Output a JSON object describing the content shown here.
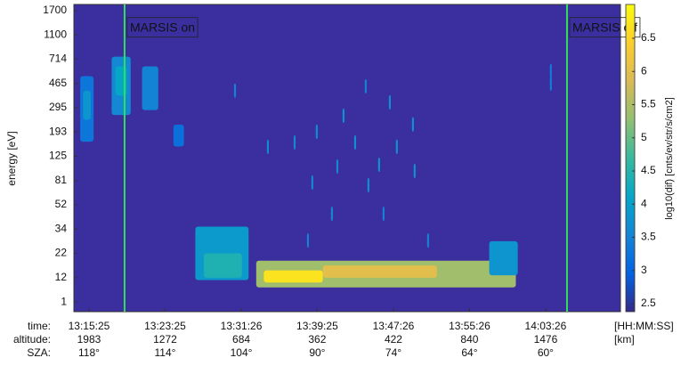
{
  "chart_data": {
    "type": "spectrogram",
    "y_label": "energy [eV]",
    "colorbar_label": "log10(dif) [cnts/ev/str/s/cm2]",
    "xlim": [
      13.83,
      71.3
    ],
    "ylim": [
      -0.4,
      12.25
    ],
    "clim": [
      2.38,
      7.01
    ],
    "background_color": "#3b2f9f",
    "colormap": [
      "#352a87",
      "#0363e1",
      "#1485d4",
      "#06a7c6",
      "#38b99e",
      "#92bf73",
      "#d9ba56",
      "#fcce2e",
      "#f9fb0e"
    ],
    "yticks": [
      {
        "value": 0,
        "label": "1"
      },
      {
        "value": 1,
        "label": "12"
      },
      {
        "value": 2,
        "label": "22"
      },
      {
        "value": 3,
        "label": "34"
      },
      {
        "value": 4,
        "label": "52"
      },
      {
        "value": 5,
        "label": "81"
      },
      {
        "value": 6,
        "label": "125"
      },
      {
        "value": 7,
        "label": "193"
      },
      {
        "value": 8,
        "label": "295"
      },
      {
        "value": 9,
        "label": "465"
      },
      {
        "value": 10,
        "label": "714"
      },
      {
        "value": 11,
        "label": "1100"
      },
      {
        "value": 12,
        "label": "1700"
      }
    ],
    "cticks": [
      2.5,
      3,
      3.5,
      4,
      4.5,
      5,
      5.5,
      6,
      6.5
    ],
    "events": [
      {
        "label": "MARSIS on",
        "x": 19.16,
        "color": "#2fe05a"
      },
      {
        "label": "MARSIS off",
        "x": 65.68,
        "color": "#2fe05a"
      }
    ],
    "rows": [
      {
        "name": "time:",
        "unit": "[HH:MM:SS]",
        "labels": [
          "13:15:25",
          "13:23:25",
          "13:31:26",
          "13:39:25",
          "13:47:26",
          "13:55:26",
          "14:03:26"
        ]
      },
      {
        "name": "altitude:",
        "unit": "[km]",
        "labels": [
          "1983",
          "1272",
          "684",
          "362",
          "422",
          "840",
          "1476"
        ]
      },
      {
        "name": "SZA:",
        "labels": [
          "118°",
          "114°",
          "104°",
          "90°",
          "74°",
          "64°",
          "60°"
        ]
      }
    ],
    "xticks": [
      15.42,
      23.42,
      31.43,
      39.42,
      47.43,
      55.43,
      63.43
    ],
    "cells": [
      {
        "t": [
          14.5,
          15.9
        ],
        "e": [
          6.6,
          9.3
        ],
        "value": 3.3
      },
      {
        "t": [
          14.8,
          15.6
        ],
        "e": [
          7.5,
          8.7
        ],
        "value": 3.8
      },
      {
        "t": [
          17.8,
          19.8
        ],
        "e": [
          7.7,
          10.1
        ],
        "value": 3.6
      },
      {
        "t": [
          18.2,
          19.4
        ],
        "e": [
          8.5,
          9.7
        ],
        "value": 4.1
      },
      {
        "t": [
          21.0,
          22.7
        ],
        "e": [
          7.9,
          9.7
        ],
        "value": 3.5
      },
      {
        "t": [
          24.3,
          25.4
        ],
        "e": [
          6.4,
          7.3
        ],
        "value": 3.2
      },
      {
        "t": [
          26.6,
          32.2
        ],
        "e": [
          0.9,
          3.1
        ],
        "value": 3.9
      },
      {
        "t": [
          27.5,
          31.5
        ],
        "e": [
          1.0,
          2.0
        ],
        "value": 4.4
      },
      {
        "t": [
          33.0,
          60.3
        ],
        "e": [
          0.6,
          1.7
        ],
        "value": 5.4
      },
      {
        "t": [
          33.8,
          40.0
        ],
        "e": [
          0.8,
          1.3
        ],
        "value": 6.7
      },
      {
        "t": [
          40.0,
          52.0
        ],
        "e": [
          1.0,
          1.5
        ],
        "value": 6.0
      },
      {
        "t": [
          57.5,
          60.5
        ],
        "e": [
          1.1,
          2.5
        ],
        "value": 3.8
      },
      {
        "t": [
          30.67,
          30.87
        ],
        "e": [
          8.4,
          9.0
        ],
        "value": 3.5
      },
      {
        "t": [
          44.42,
          44.62
        ],
        "e": [
          8.58,
          9.18
        ],
        "value": 3.5
      },
      {
        "t": [
          42.08,
          42.28
        ],
        "e": [
          7.37,
          7.97
        ],
        "value": 3.8
      },
      {
        "t": [
          46.95,
          47.15
        ],
        "e": [
          7.92,
          8.52
        ],
        "value": 3.7
      },
      {
        "t": [
          49.38,
          49.58
        ],
        "e": [
          7.01,
          7.61
        ],
        "value": 3.8
      },
      {
        "t": [
          39.27,
          39.47
        ],
        "e": [
          6.71,
          7.31
        ],
        "value": 3.7
      },
      {
        "t": [
          36.94,
          37.14
        ],
        "e": [
          6.27,
          6.87
        ],
        "value": 3.6
      },
      {
        "t": [
          47.69,
          47.89
        ],
        "e": [
          6.09,
          6.69
        ],
        "value": 3.8
      },
      {
        "t": [
          43.3,
          43.5
        ],
        "e": [
          6.27,
          6.87
        ],
        "value": 3.7
      },
      {
        "t": [
          34.13,
          34.33
        ],
        "e": [
          6.09,
          6.69
        ],
        "value": 3.6
      },
      {
        "t": [
          45.82,
          46.02
        ],
        "e": [
          5.35,
          5.95
        ],
        "value": 3.8
      },
      {
        "t": [
          41.43,
          41.63
        ],
        "e": [
          5.28,
          5.88
        ],
        "value": 3.6
      },
      {
        "t": [
          49.56,
          49.76
        ],
        "e": [
          5.09,
          5.69
        ],
        "value": 3.8
      },
      {
        "t": [
          38.8,
          39.0
        ],
        "e": [
          4.62,
          5.22
        ],
        "value": 3.6
      },
      {
        "t": [
          44.7,
          44.9
        ],
        "e": [
          4.51,
          5.11
        ],
        "value": 3.7
      },
      {
        "t": [
          40.86,
          41.06
        ],
        "e": [
          3.33,
          3.93
        ],
        "value": 3.6
      },
      {
        "t": [
          38.34,
          38.54
        ],
        "e": [
          2.23,
          2.83
        ],
        "value": 3.5
      },
      {
        "t": [
          50.97,
          51.17
        ],
        "e": [
          2.23,
          2.83
        ],
        "value": 3.5
      },
      {
        "t": [
          63.88,
          64.08
        ],
        "e": [
          9.21,
          9.81
        ],
        "value": 3.4
      },
      {
        "t": [
          63.88,
          64.08
        ],
        "e": [
          8.69,
          9.29
        ],
        "value": 3.4
      },
      {
        "t": [
          46.29,
          46.49
        ],
        "e": [
          3.33,
          3.93
        ],
        "value": 3.5
      }
    ]
  }
}
